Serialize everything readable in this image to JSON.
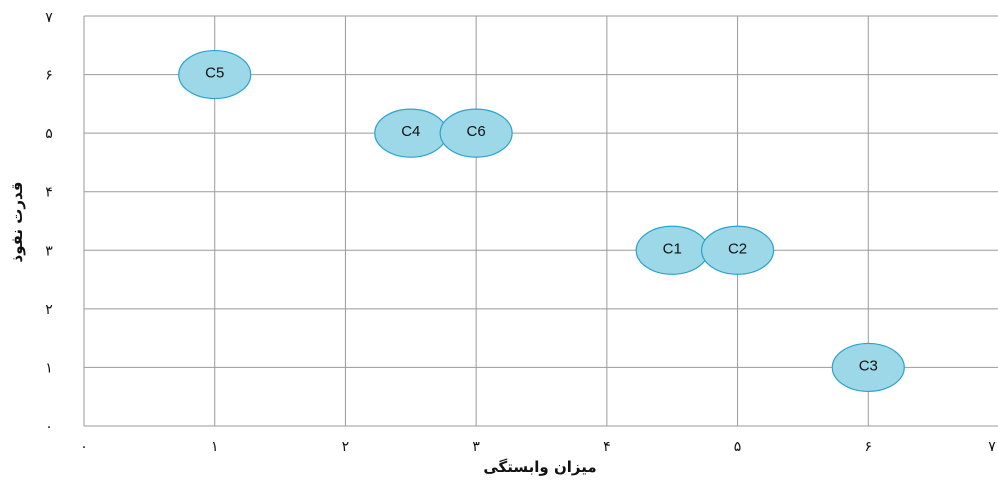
{
  "chart_data": {
    "type": "scatter",
    "xlabel": "میزان وابستگی",
    "ylabel": "قدرت نفوذ",
    "xlim": [
      0,
      7
    ],
    "ylim": [
      0,
      7
    ],
    "x_tick_labels": [
      "۰",
      "۱",
      "۲",
      "۳",
      "۴",
      "۵",
      "۶",
      "۷"
    ],
    "y_tick_labels": [
      "۰",
      "۱",
      "۲",
      "۳",
      "۴",
      "۵",
      "۶",
      "۷"
    ],
    "grid": true,
    "marker_fill": "#9dd8e8",
    "marker_stroke": "#2aa3cf",
    "points": [
      {
        "label": "C5",
        "x": 1,
        "y": 6
      },
      {
        "label": "C4",
        "x": 2.5,
        "y": 5
      },
      {
        "label": "C6",
        "x": 3,
        "y": 5
      },
      {
        "label": "C1",
        "x": 4.5,
        "y": 3
      },
      {
        "label": "C2",
        "x": 5,
        "y": 3
      },
      {
        "label": "C3",
        "x": 6,
        "y": 1
      }
    ]
  }
}
